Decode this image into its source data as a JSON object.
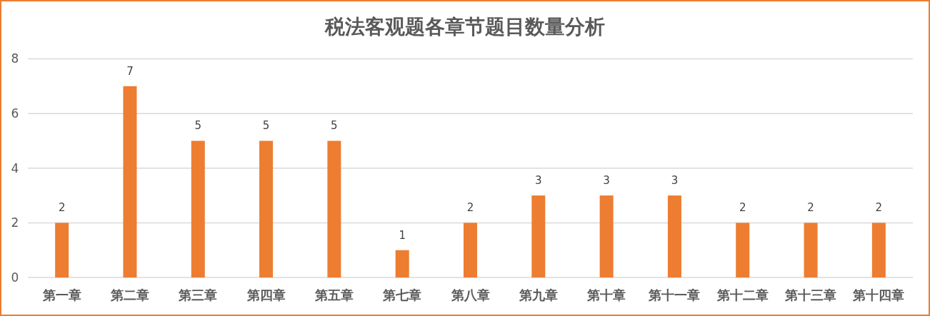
{
  "chart_data": {
    "type": "bar",
    "title": "税法客观题各章节题目数量分析",
    "categories": [
      "第一章",
      "第二章",
      "第三章",
      "第四章",
      "第五章",
      "第七章",
      "第八章",
      "第九章",
      "第十章",
      "第十一章",
      "第十二章",
      "第十三章",
      "第十四章"
    ],
    "values": [
      2,
      7,
      5,
      5,
      5,
      1,
      2,
      3,
      3,
      3,
      2,
      2,
      2
    ],
    "color": "#ed7d31",
    "ylim": [
      0,
      8
    ],
    "yticks": [
      0,
      2,
      4,
      6,
      8
    ],
    "grid": "y",
    "data_labels": true
  }
}
